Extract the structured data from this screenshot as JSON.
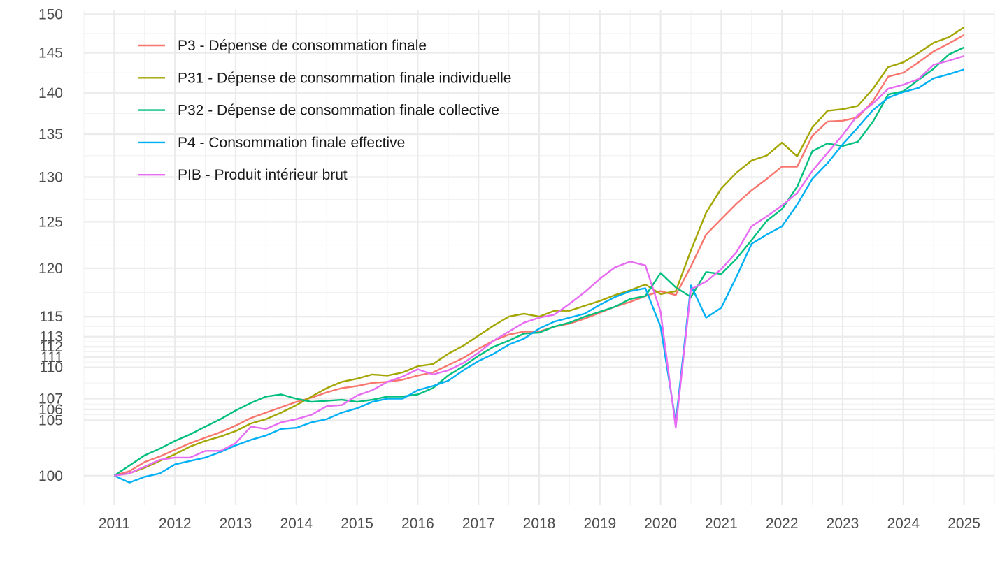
{
  "chart_data": {
    "type": "line",
    "title": "",
    "xlabel": "",
    "ylabel": "",
    "xlim": [
      2010.5,
      2025.5
    ],
    "y_scale": "log",
    "ylim": [
      97.5,
      150.5
    ],
    "y_ticks": [
      100,
      105,
      106,
      107,
      110,
      111,
      112,
      113,
      115,
      120,
      125,
      130,
      135,
      140,
      145,
      150
    ],
    "x_ticks": [
      2011,
      2012,
      2013,
      2014,
      2015,
      2016,
      2017,
      2018,
      2019,
      2020,
      2021,
      2022,
      2023,
      2024,
      2025
    ],
    "grid": true,
    "legend_position": "top-left",
    "x": [
      2011,
      2011.25,
      2011.5,
      2011.75,
      2012,
      2012.25,
      2012.5,
      2012.75,
      2013,
      2013.25,
      2013.5,
      2013.75,
      2014,
      2014.25,
      2014.5,
      2014.75,
      2015,
      2015.25,
      2015.5,
      2015.75,
      2016,
      2016.25,
      2016.5,
      2016.75,
      2017,
      2017.25,
      2017.5,
      2017.75,
      2018,
      2018.25,
      2018.5,
      2018.75,
      2019,
      2019.25,
      2019.5,
      2019.75,
      2020,
      2020.25,
      2020.5,
      2020.75,
      2021,
      2021.25,
      2021.5,
      2021.75,
      2022,
      2022.25,
      2022.5,
      2022.75,
      2023,
      2023.25,
      2023.5,
      2023.75,
      2024,
      2024.25,
      2024.5,
      2024.75,
      2025
    ],
    "series": [
      {
        "name": "P3 - Dépense de consommation finale",
        "color": "#F8766D",
        "values": [
          100,
          100.4,
          101.2,
          101.7,
          102.3,
          102.9,
          103.4,
          103.9,
          104.5,
          105.2,
          105.7,
          106.2,
          106.7,
          107.1,
          107.6,
          108.0,
          108.2,
          108.5,
          108.6,
          108.8,
          109.2,
          109.5,
          110.2,
          110.9,
          111.8,
          112.6,
          113.2,
          113.5,
          113.5,
          114.0,
          114.3,
          114.8,
          115.4,
          116.0,
          116.5,
          117.1,
          117.6,
          117.2,
          120.2,
          123.6,
          125.3,
          127.0,
          128.5,
          129.8,
          131.2,
          131.2,
          134.8,
          136.5,
          136.6,
          137.0,
          139.0,
          142.0,
          142.5,
          143.8,
          145.2,
          146.2,
          147.3
        ]
      },
      {
        "name": "P31 - Dépense de consommation finale individuelle",
        "color": "#A3A500",
        "values": [
          100,
          100.2,
          100.7,
          101.3,
          101.9,
          102.6,
          103.1,
          103.5,
          104.0,
          104.7,
          105.1,
          105.7,
          106.4,
          107.2,
          108.0,
          108.6,
          108.9,
          109.3,
          109.2,
          109.5,
          110.1,
          110.3,
          111.3,
          112.1,
          113.1,
          114.1,
          115.0,
          115.3,
          115.0,
          115.6,
          115.6,
          116.1,
          116.6,
          117.2,
          117.7,
          118.3,
          117.3,
          117.6,
          121.9,
          126.0,
          128.7,
          130.5,
          131.9,
          132.5,
          134.0,
          132.4,
          135.8,
          137.8,
          138.0,
          138.4,
          140.5,
          143.2,
          143.8,
          145.0,
          146.3,
          147.0,
          148.3
        ]
      },
      {
        "name": "P32 - Dépense de consommation finale collective",
        "color": "#00BF7D",
        "values": [
          100,
          100.9,
          101.8,
          102.4,
          103.1,
          103.7,
          104.4,
          105.1,
          105.9,
          106.6,
          107.2,
          107.4,
          107.0,
          106.7,
          106.8,
          106.9,
          106.7,
          106.9,
          107.2,
          107.2,
          107.4,
          108.0,
          109.2,
          110.1,
          111.1,
          112.0,
          112.6,
          113.3,
          113.4,
          114.0,
          114.4,
          115.0,
          115.5,
          116.0,
          116.8,
          117.1,
          119.5,
          118.0,
          117.0,
          119.6,
          119.4,
          121.0,
          123.0,
          125.1,
          126.4,
          128.9,
          133.0,
          133.9,
          133.6,
          134.1,
          136.5,
          139.8,
          140.2,
          141.6,
          143.0,
          144.8,
          145.7
        ]
      },
      {
        "name": "P4 - Consommation finale effective",
        "color": "#00B0F6",
        "values": [
          100,
          99.4,
          99.9,
          100.2,
          101.0,
          101.3,
          101.6,
          102.1,
          102.7,
          103.2,
          103.6,
          104.2,
          104.3,
          104.8,
          105.1,
          105.7,
          106.1,
          106.7,
          107.0,
          107.0,
          107.8,
          108.2,
          108.7,
          109.7,
          110.6,
          111.3,
          112.2,
          112.8,
          113.8,
          114.5,
          114.9,
          115.3,
          116.2,
          117.0,
          117.6,
          117.9,
          114.0,
          104.8,
          118.2,
          114.9,
          115.9,
          119.1,
          122.6,
          123.6,
          124.5,
          126.9,
          129.8,
          131.6,
          133.8,
          135.8,
          137.9,
          139.4,
          140.1,
          140.6,
          141.8,
          142.3,
          142.9
        ]
      },
      {
        "name": "PIB - Produit intérieur brut",
        "color": "#E76BF3",
        "values": [
          100,
          100.2,
          100.8,
          101.4,
          101.6,
          101.6,
          102.2,
          102.2,
          102.9,
          104.4,
          104.2,
          104.8,
          105.1,
          105.5,
          106.3,
          106.4,
          107.3,
          107.8,
          108.6,
          109.1,
          109.8,
          109.3,
          109.7,
          110.4,
          111.4,
          112.6,
          113.5,
          114.4,
          114.9,
          115.2,
          116.3,
          117.5,
          118.9,
          120.1,
          120.7,
          120.3,
          115.5,
          104.3,
          117.8,
          118.6,
          119.9,
          121.7,
          124.5,
          125.6,
          126.8,
          128.2,
          130.7,
          132.8,
          134.9,
          137.3,
          138.7,
          140.5,
          141.0,
          141.7,
          143.5,
          144.0,
          144.6
        ]
      }
    ]
  }
}
